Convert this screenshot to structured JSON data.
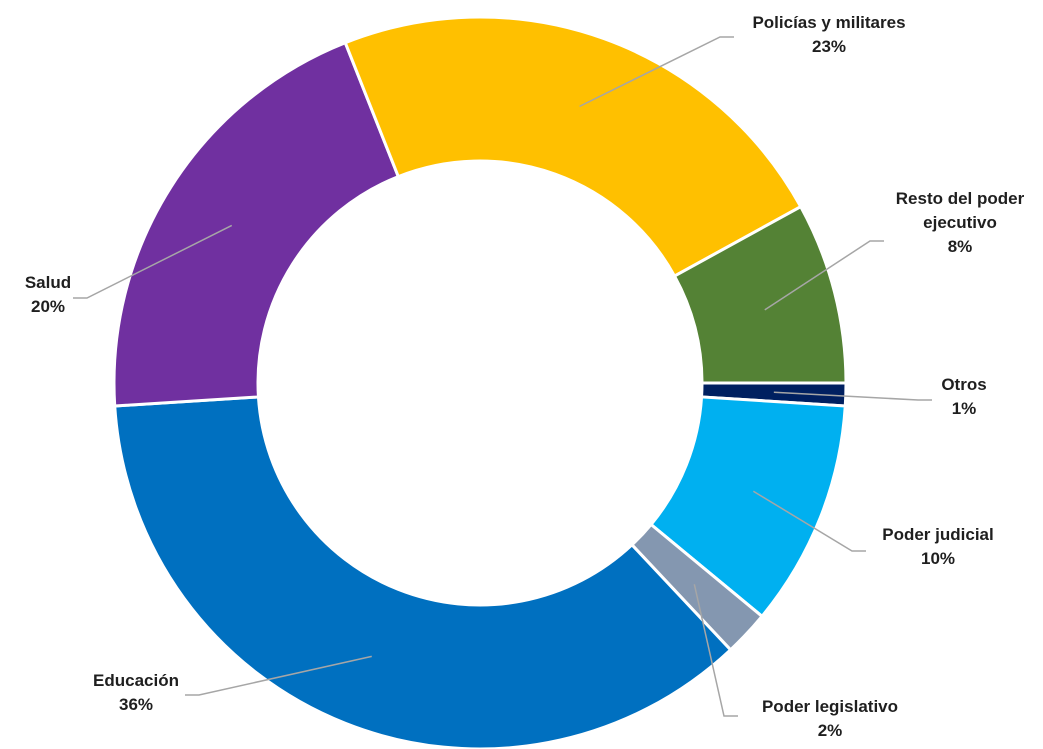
{
  "chart_data": {
    "type": "pie",
    "variant": "donut",
    "categories": [
      "Otros",
      "Poder judicial",
      "Poder legislativo",
      "Educación",
      "Salud",
      "Policías y militares",
      "Resto del poder ejecutivo"
    ],
    "values": [
      1,
      10,
      2,
      36,
      20,
      23,
      8
    ],
    "value_labels": [
      "1%",
      "10%",
      "2%",
      "36%",
      "20%",
      "23%",
      "8%"
    ],
    "colors": [
      "#002060",
      "#00b0f0",
      "#8497b0",
      "#0070c0",
      "#7030a0",
      "#ffc000",
      "#548235"
    ],
    "label_lines": [
      [
        "Otros"
      ],
      [
        "Poder judicial"
      ],
      [
        "Poder legislativo"
      ],
      [
        "Educación"
      ],
      [
        "Salud"
      ],
      [
        "Policías y militares"
      ],
      [
        "Resto del poder",
        "ejecutivo"
      ]
    ],
    "title": "",
    "legend": "none",
    "grid": false
  }
}
